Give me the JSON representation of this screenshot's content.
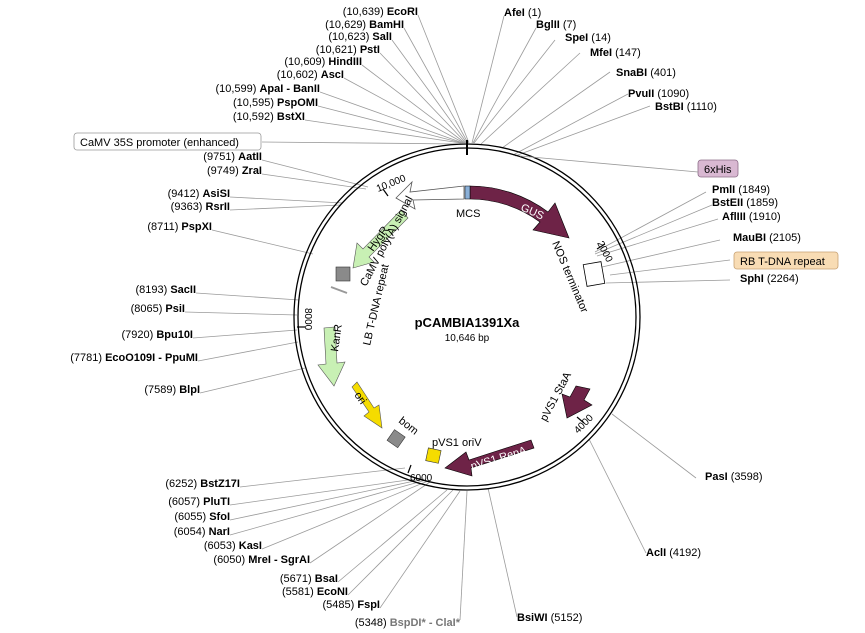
{
  "plasmid": {
    "name": "pCAMBIA1391Xa",
    "size": "10,646 bp"
  },
  "ticks": [
    "2000",
    "4000",
    "6000",
    "8000",
    "10,000"
  ],
  "features": {
    "gus": "GUS",
    "nos": "NOS terminator",
    "mcs": "MCS",
    "camv_polya": "CaMV poly(A) signal",
    "hygr": "HygR",
    "lb": "LB T-DNA repeat",
    "kanr": "KanR",
    "ori": "ori",
    "bom": "bom",
    "pvs1_oriv": "pVS1 oriV",
    "pvs1_repa": "pVS1 RepA",
    "pvs1_staa": "pVS1 StaA"
  },
  "boxes": {
    "camv35s": "CaMV 35S promoter (enhanced)",
    "his": "6xHis",
    "rb": "RB T-DNA repeat"
  },
  "sites_left": [
    {
      "pos": "(10,639)",
      "name": "EcoRI"
    },
    {
      "pos": "(10,629)",
      "name": "BamHI"
    },
    {
      "pos": "(10,623)",
      "name": "SalI"
    },
    {
      "pos": "(10,621)",
      "name": "PstI"
    },
    {
      "pos": "(10,609)",
      "name": "HindIII"
    },
    {
      "pos": "(10,602)",
      "name": "AscI"
    },
    {
      "pos": "(10,599)",
      "name": "ApaI - BanII"
    },
    {
      "pos": "(10,595)",
      "name": "PspOMI"
    },
    {
      "pos": "(10,592)",
      "name": "BstXI"
    },
    {
      "pos": "(9751)",
      "name": "AatII"
    },
    {
      "pos": "(9749)",
      "name": "ZraI"
    },
    {
      "pos": "(9412)",
      "name": "AsiSI"
    },
    {
      "pos": "(9363)",
      "name": "RsrII"
    },
    {
      "pos": "(8711)",
      "name": "PspXI"
    },
    {
      "pos": "(8193)",
      "name": "SacII"
    },
    {
      "pos": "(8065)",
      "name": "PsiI"
    },
    {
      "pos": "(7920)",
      "name": "Bpu10I"
    },
    {
      "pos": "(7781)",
      "name": "EcoO109I - PpuMI"
    },
    {
      "pos": "(7589)",
      "name": "BlpI"
    },
    {
      "pos": "(6252)",
      "name": "BstZ17I"
    },
    {
      "pos": "(6057)",
      "name": "PluTI"
    },
    {
      "pos": "(6055)",
      "name": "SfoI"
    },
    {
      "pos": "(6054)",
      "name": "NarI"
    },
    {
      "pos": "(6053)",
      "name": "KasI"
    },
    {
      "pos": "(6050)",
      "name": "MreI - SgrAI"
    },
    {
      "pos": "(5671)",
      "name": "BsaI"
    },
    {
      "pos": "(5581)",
      "name": "EcoNI"
    },
    {
      "pos": "(5485)",
      "name": "FspI"
    },
    {
      "pos": "(5348)",
      "name": "BspDI* - ClaI*"
    }
  ],
  "sites_right": [
    {
      "name": "AfeI",
      "pos": "(1)"
    },
    {
      "name": "BglII",
      "pos": "(7)"
    },
    {
      "name": "SpeI",
      "pos": "(14)"
    },
    {
      "name": "MfeI",
      "pos": "(147)"
    },
    {
      "name": "SnaBI",
      "pos": "(401)"
    },
    {
      "name": "PvuII",
      "pos": "(1090)"
    },
    {
      "name": "BstBI",
      "pos": "(1110)"
    },
    {
      "name": "PmlI",
      "pos": "(1849)"
    },
    {
      "name": "BstEII",
      "pos": "(1859)"
    },
    {
      "name": "AflIII",
      "pos": "(1910)"
    },
    {
      "name": "MauBI",
      "pos": "(2105)"
    },
    {
      "name": "SphI",
      "pos": "(2264)"
    },
    {
      "name": "PasI",
      "pos": "(3598)"
    },
    {
      "name": "AclI",
      "pos": "(4192)"
    },
    {
      "name": "BsiWI",
      "pos": "(5152)"
    }
  ],
  "colors": {
    "gus": "#6e2347",
    "hygr": "#c8f0b4",
    "kanr": "#c8f0b4",
    "ori": "#f5dc00",
    "pvs1": "#6e2347",
    "his_box": "#d9b8d2",
    "rb_box": "#f8dcb4",
    "grey_box": "#8a8a8a"
  }
}
